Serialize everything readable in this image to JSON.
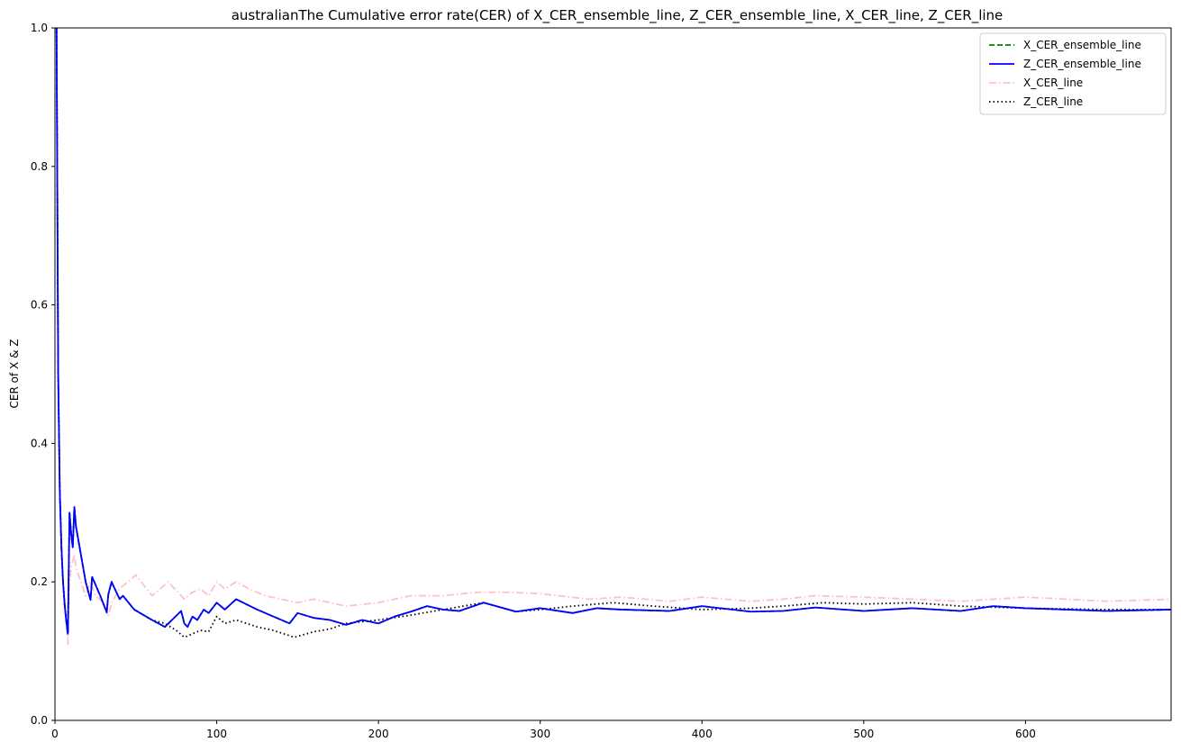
{
  "chart_data": {
    "type": "line",
    "title": "australianThe Cumulative error rate(CER) of X_CER_ensemble_line, Z_CER_ensemble_line, X_CER_line, Z_CER_line",
    "xlabel": "",
    "ylabel": "CER of X & Z",
    "xlim": [
      0,
      690
    ],
    "ylim": [
      0,
      1.0
    ],
    "xticks": [
      0,
      100,
      200,
      300,
      400,
      500,
      600
    ],
    "yticks": [
      0.0,
      0.2,
      0.4,
      0.6,
      0.8,
      1.0
    ],
    "ytick_labels": [
      "0.0",
      "0.2",
      "0.4",
      "0.6",
      "0.8",
      "1.0"
    ],
    "grid": false,
    "legend_position": "top-right",
    "series": [
      {
        "name": "X_CER_ensemble_line",
        "color": "#008000",
        "style": "dashed",
        "x": [
          1,
          2,
          3,
          4,
          5,
          6,
          7,
          8,
          9,
          10,
          11,
          12,
          13,
          16,
          19,
          22,
          23,
          28,
          32,
          33,
          35,
          40,
          42,
          49,
          60,
          68,
          78,
          80,
          82,
          85,
          88,
          92,
          95,
          100,
          105,
          112,
          125,
          145,
          150,
          160,
          170,
          180,
          190,
          200,
          210,
          220,
          230,
          240,
          250,
          265,
          285,
          300,
          320,
          335,
          350,
          380,
          400,
          430,
          450,
          470,
          500,
          530,
          560,
          580,
          600,
          650,
          690
        ],
        "y": [
          1.0,
          0.5,
          0.33,
          0.25,
          0.2,
          0.167,
          0.143,
          0.125,
          0.3,
          0.27,
          0.25,
          0.308,
          0.28,
          0.24,
          0.2,
          0.174,
          0.207,
          0.18,
          0.156,
          0.182,
          0.2,
          0.175,
          0.18,
          0.16,
          0.145,
          0.135,
          0.158,
          0.14,
          0.135,
          0.15,
          0.145,
          0.16,
          0.155,
          0.17,
          0.16,
          0.175,
          0.16,
          0.14,
          0.155,
          0.148,
          0.145,
          0.138,
          0.145,
          0.14,
          0.15,
          0.157,
          0.165,
          0.16,
          0.158,
          0.17,
          0.157,
          0.162,
          0.155,
          0.162,
          0.16,
          0.158,
          0.165,
          0.157,
          0.158,
          0.163,
          0.158,
          0.162,
          0.158,
          0.165,
          0.162,
          0.158,
          0.16
        ]
      },
      {
        "name": "Z_CER_ensemble_line",
        "color": "#0000ff",
        "style": "solid",
        "x": [
          1,
          2,
          3,
          4,
          5,
          6,
          7,
          8,
          9,
          10,
          11,
          12,
          13,
          16,
          19,
          22,
          23,
          28,
          32,
          33,
          35,
          40,
          42,
          49,
          60,
          68,
          78,
          80,
          82,
          85,
          88,
          92,
          95,
          100,
          105,
          112,
          125,
          145,
          150,
          160,
          170,
          180,
          190,
          200,
          210,
          220,
          230,
          240,
          250,
          265,
          285,
          300,
          320,
          335,
          350,
          380,
          400,
          430,
          450,
          470,
          500,
          530,
          560,
          580,
          600,
          650,
          690
        ],
        "y": [
          1.0,
          0.5,
          0.33,
          0.25,
          0.2,
          0.167,
          0.143,
          0.125,
          0.3,
          0.27,
          0.25,
          0.308,
          0.28,
          0.24,
          0.2,
          0.174,
          0.207,
          0.18,
          0.156,
          0.182,
          0.2,
          0.175,
          0.18,
          0.16,
          0.145,
          0.135,
          0.158,
          0.14,
          0.135,
          0.15,
          0.145,
          0.16,
          0.155,
          0.17,
          0.16,
          0.175,
          0.16,
          0.14,
          0.155,
          0.148,
          0.145,
          0.138,
          0.145,
          0.14,
          0.15,
          0.157,
          0.165,
          0.16,
          0.158,
          0.17,
          0.157,
          0.162,
          0.155,
          0.162,
          0.16,
          0.158,
          0.165,
          0.157,
          0.158,
          0.163,
          0.158,
          0.162,
          0.158,
          0.165,
          0.162,
          0.158,
          0.16
        ]
      },
      {
        "name": "X_CER_line",
        "color": "#ffc0cb",
        "style": "dashdot",
        "x": [
          1,
          2,
          3,
          4,
          5,
          6,
          7,
          8,
          9,
          10,
          11,
          12,
          13,
          16,
          19,
          22,
          25,
          30,
          33,
          35,
          40,
          45,
          50,
          55,
          60,
          65,
          70,
          80,
          85,
          90,
          95,
          100,
          105,
          112,
          120,
          130,
          140,
          150,
          160,
          170,
          180,
          200,
          220,
          240,
          260,
          280,
          300,
          330,
          350,
          380,
          400,
          430,
          450,
          470,
          500,
          530,
          560,
          580,
          600,
          650,
          690
        ],
        "y": [
          1.0,
          0.5,
          0.33,
          0.25,
          0.2,
          0.167,
          0.143,
          0.11,
          0.2,
          0.22,
          0.23,
          0.24,
          0.22,
          0.2,
          0.18,
          0.2,
          0.18,
          0.17,
          0.15,
          0.17,
          0.19,
          0.2,
          0.21,
          0.195,
          0.18,
          0.19,
          0.2,
          0.175,
          0.185,
          0.19,
          0.18,
          0.2,
          0.19,
          0.2,
          0.19,
          0.18,
          0.175,
          0.17,
          0.175,
          0.17,
          0.165,
          0.17,
          0.18,
          0.18,
          0.185,
          0.185,
          0.183,
          0.175,
          0.178,
          0.172,
          0.178,
          0.172,
          0.175,
          0.18,
          0.178,
          0.175,
          0.172,
          0.175,
          0.178,
          0.172,
          0.175
        ]
      },
      {
        "name": "Z_CER_line",
        "color": "#000000",
        "style": "dotted",
        "x": [
          1,
          2,
          3,
          4,
          5,
          6,
          7,
          8,
          9,
          10,
          11,
          12,
          13,
          16,
          19,
          22,
          23,
          28,
          32,
          33,
          35,
          40,
          42,
          49,
          60,
          68,
          75,
          80,
          85,
          90,
          95,
          100,
          105,
          112,
          125,
          135,
          148,
          160,
          170,
          180,
          200,
          220,
          240,
          265,
          285,
          300,
          320,
          345,
          370,
          400,
          430,
          450,
          475,
          500,
          530,
          560,
          600,
          650,
          690
        ],
        "y": [
          1.0,
          0.5,
          0.33,
          0.25,
          0.2,
          0.167,
          0.143,
          0.125,
          0.3,
          0.27,
          0.25,
          0.308,
          0.28,
          0.24,
          0.2,
          0.174,
          0.207,
          0.18,
          0.156,
          0.182,
          0.2,
          0.175,
          0.18,
          0.16,
          0.145,
          0.14,
          0.13,
          0.12,
          0.125,
          0.13,
          0.128,
          0.15,
          0.14,
          0.145,
          0.135,
          0.13,
          0.12,
          0.128,
          0.132,
          0.14,
          0.145,
          0.152,
          0.16,
          0.17,
          0.157,
          0.16,
          0.165,
          0.17,
          0.165,
          0.16,
          0.162,
          0.165,
          0.17,
          0.168,
          0.17,
          0.165,
          0.162,
          0.16,
          0.16
        ]
      }
    ]
  }
}
